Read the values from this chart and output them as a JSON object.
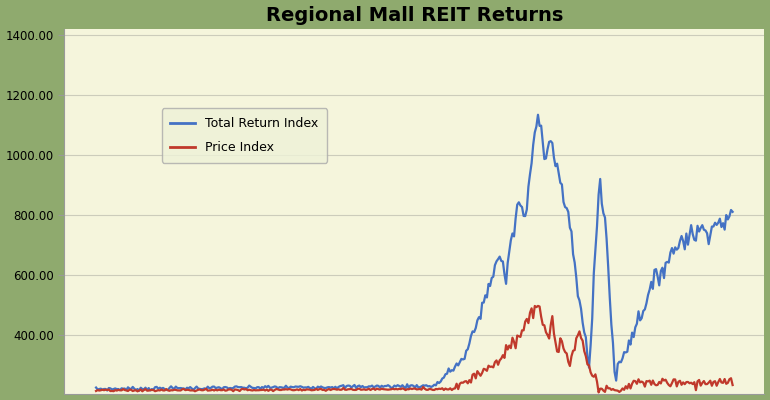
{
  "title": "Regional Mall REIT Returns",
  "title_fontsize": 14,
  "title_fontweight": "bold",
  "background_outer": "#8faa6e",
  "background_inner": "#f5f5dc",
  "ylim": [
    200,
    1420
  ],
  "yticks": [
    400.0,
    600.0,
    800.0,
    1000.0,
    1200.0,
    1400.0
  ],
  "ytick_labels": [
    "400.00",
    "600.00",
    "800.00",
    "1000.00",
    "1200.00",
    "1400.00"
  ],
  "grid_color": "#ccccbb",
  "total_return_color": "#4472c4",
  "price_index_color": "#c0392b",
  "total_return_label": "Total Return Index",
  "price_index_label": "Price Index",
  "legend_bg": "#eef2d8",
  "legend_border": "#aaaaaa",
  "line_width": 1.6,
  "n_points": 400
}
